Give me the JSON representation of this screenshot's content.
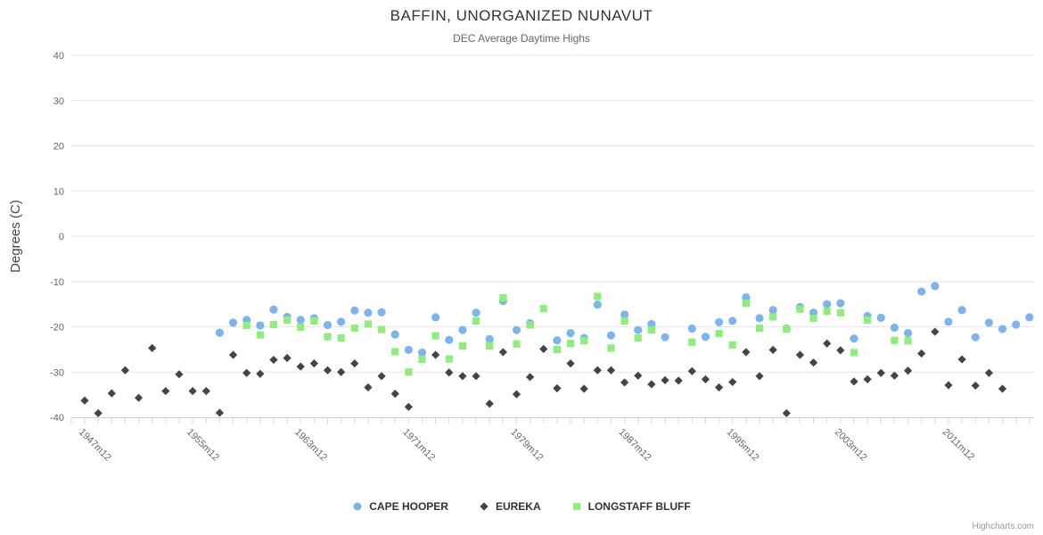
{
  "header": {
    "title": "BAFFIN, UNORGANIZED NUNAVUT",
    "subtitle": "DEC Average Daytime Highs"
  },
  "credits_label": "Highcharts.com",
  "chart_data": {
    "type": "scatter",
    "title": "BAFFIN, UNORGANIZED NUNAVUT",
    "subtitle": "DEC Average Daytime Highs",
    "xlabel": "",
    "ylabel": "Degrees (C)",
    "ylim": [
      -40,
      40
    ],
    "ytick_interval": 10,
    "ytick_labels": [
      "40",
      "30",
      "20",
      "10",
      "0",
      "-10",
      "-20",
      "-30",
      "-40"
    ],
    "x_minor_tick_years": [
      1946,
      2017
    ],
    "x_tick_labels": [
      "1947m12",
      "1955m12",
      "1963m12",
      "1971m12",
      "1979m12",
      "1987m12",
      "1995m12",
      "2003m12",
      "2011m12"
    ],
    "grid": "horizontal-on",
    "legend_position": "bottom-center",
    "colors": {
      "grid_line": "#e6e6e6",
      "axis_line": "#ccd6eb",
      "tick": "#ccd6eb",
      "axis_label": "#666666",
      "axis_title": "#444444",
      "title": "#333333",
      "subtitle": "#666666",
      "legend_text": "#333333",
      "credits_text": "#999999"
    },
    "series": [
      {
        "name": "CAPE HOOPER",
        "marker": "circle",
        "color": "#7cb5ec",
        "points": [
          [
            1957,
            -21.3
          ],
          [
            1958,
            -19.1
          ],
          [
            1959,
            -18.5
          ],
          [
            1960,
            -19.7
          ],
          [
            1961,
            -16.2
          ],
          [
            1962,
            -17.8
          ],
          [
            1963,
            -18.5
          ],
          [
            1964,
            -18.1
          ],
          [
            1965,
            -19.6
          ],
          [
            1966,
            -18.9
          ],
          [
            1967,
            -16.4
          ],
          [
            1968,
            -16.9
          ],
          [
            1969,
            -16.8
          ],
          [
            1970,
            -21.7
          ],
          [
            1971,
            -25.1
          ],
          [
            1972,
            -25.7
          ],
          [
            1973,
            -17.9
          ],
          [
            1974,
            -22.9
          ],
          [
            1975,
            -20.7
          ],
          [
            1976,
            -16.9
          ],
          [
            1977,
            -22.7
          ],
          [
            1978,
            -14.3
          ],
          [
            1979,
            -20.7
          ],
          [
            1980,
            -19.2
          ],
          [
            1982,
            -23.0
          ],
          [
            1983,
            -21.4
          ],
          [
            1984,
            -22.5
          ],
          [
            1985,
            -15.1
          ],
          [
            1986,
            -21.9
          ],
          [
            1987,
            -17.3
          ],
          [
            1988,
            -20.7
          ],
          [
            1989,
            -19.4
          ],
          [
            1990,
            -22.3
          ],
          [
            1992,
            -20.4
          ],
          [
            1993,
            -22.2
          ],
          [
            1994,
            -19.0
          ],
          [
            1995,
            -18.7
          ],
          [
            1996,
            -13.5
          ],
          [
            1997,
            -18.1
          ],
          [
            1998,
            -16.3
          ],
          [
            1999,
            -20.4
          ],
          [
            2000,
            -15.6
          ],
          [
            2001,
            -16.9
          ],
          [
            2002,
            -15.0
          ],
          [
            2003,
            -14.8
          ],
          [
            2004,
            -22.6
          ],
          [
            2005,
            -17.6
          ],
          [
            2006,
            -18.0
          ],
          [
            2007,
            -20.2
          ],
          [
            2008,
            -21.4
          ],
          [
            2009,
            -12.2
          ],
          [
            2010,
            -11.0
          ],
          [
            2011,
            -18.9
          ],
          [
            2012,
            -16.3
          ],
          [
            2013,
            -22.3
          ],
          [
            2014,
            -19.1
          ],
          [
            2015,
            -20.5
          ],
          [
            2016,
            -19.5
          ],
          [
            2017,
            -17.9
          ]
        ]
      },
      {
        "name": "EUREKA",
        "marker": "diamond",
        "color": "#434348",
        "points": [
          [
            1947,
            -36.3
          ],
          [
            1948,
            -39.1
          ],
          [
            1949,
            -34.7
          ],
          [
            1950,
            -29.6
          ],
          [
            1951,
            -35.7
          ],
          [
            1952,
            -24.7
          ],
          [
            1953,
            -34.2
          ],
          [
            1954,
            -30.5
          ],
          [
            1955,
            -34.2
          ],
          [
            1956,
            -34.2
          ],
          [
            1957,
            -39.0
          ],
          [
            1958,
            -26.2
          ],
          [
            1959,
            -30.2
          ],
          [
            1960,
            -30.4
          ],
          [
            1961,
            -27.3
          ],
          [
            1962,
            -26.9
          ],
          [
            1963,
            -28.8
          ],
          [
            1964,
            -28.1
          ],
          [
            1965,
            -29.6
          ],
          [
            1966,
            -30.0
          ],
          [
            1967,
            -28.1
          ],
          [
            1968,
            -33.4
          ],
          [
            1969,
            -30.9
          ],
          [
            1970,
            -34.8
          ],
          [
            1971,
            -37.7
          ],
          [
            1973,
            -26.2
          ],
          [
            1974,
            -30.1
          ],
          [
            1975,
            -30.9
          ],
          [
            1976,
            -30.9
          ],
          [
            1977,
            -37.0
          ],
          [
            1978,
            -25.6
          ],
          [
            1979,
            -34.9
          ],
          [
            1980,
            -31.1
          ],
          [
            1981,
            -24.9
          ],
          [
            1982,
            -33.6
          ],
          [
            1983,
            -28.1
          ],
          [
            1984,
            -33.7
          ],
          [
            1985,
            -29.6
          ],
          [
            1986,
            -29.6
          ],
          [
            1987,
            -32.3
          ],
          [
            1988,
            -30.8
          ],
          [
            1989,
            -32.7
          ],
          [
            1990,
            -31.8
          ],
          [
            1991,
            -31.9
          ],
          [
            1992,
            -29.8
          ],
          [
            1993,
            -31.6
          ],
          [
            1994,
            -33.4
          ],
          [
            1995,
            -32.2
          ],
          [
            1996,
            -25.6
          ],
          [
            1997,
            -30.9
          ],
          [
            1998,
            -25.1
          ],
          [
            1999,
            -39.1
          ],
          [
            2000,
            -26.2
          ],
          [
            2001,
            -27.9
          ],
          [
            2002,
            -23.7
          ],
          [
            2003,
            -25.2
          ],
          [
            2004,
            -32.1
          ],
          [
            2005,
            -31.6
          ],
          [
            2006,
            -30.2
          ],
          [
            2007,
            -30.8
          ],
          [
            2008,
            -29.7
          ],
          [
            2009,
            -25.9
          ],
          [
            2010,
            -21.1
          ],
          [
            2011,
            -32.9
          ],
          [
            2012,
            -27.2
          ],
          [
            2013,
            -33.0
          ],
          [
            2014,
            -30.2
          ],
          [
            2015,
            -33.7
          ]
        ]
      },
      {
        "name": "LONGSTAFF BLUFF",
        "marker": "square",
        "color": "#90ed7d",
        "points": [
          [
            1959,
            -19.7
          ],
          [
            1960,
            -21.8
          ],
          [
            1961,
            -19.5
          ],
          [
            1962,
            -18.5
          ],
          [
            1963,
            -20.1
          ],
          [
            1964,
            -18.7
          ],
          [
            1965,
            -22.2
          ],
          [
            1966,
            -22.5
          ],
          [
            1967,
            -20.3
          ],
          [
            1968,
            -19.4
          ],
          [
            1969,
            -20.6
          ],
          [
            1970,
            -25.5
          ],
          [
            1971,
            -30.0
          ],
          [
            1972,
            -27.2
          ],
          [
            1973,
            -22.0
          ],
          [
            1974,
            -27.1
          ],
          [
            1975,
            -24.2
          ],
          [
            1976,
            -18.7
          ],
          [
            1977,
            -24.2
          ],
          [
            1978,
            -13.6
          ],
          [
            1979,
            -23.8
          ],
          [
            1980,
            -19.6
          ],
          [
            1981,
            -16.0
          ],
          [
            1982,
            -25.0
          ],
          [
            1983,
            -23.7
          ],
          [
            1984,
            -23.1
          ],
          [
            1985,
            -13.3
          ],
          [
            1986,
            -24.7
          ],
          [
            1987,
            -18.7
          ],
          [
            1988,
            -22.5
          ],
          [
            1989,
            -20.7
          ],
          [
            1992,
            -23.4
          ],
          [
            1994,
            -21.5
          ],
          [
            1995,
            -24.0
          ],
          [
            1996,
            -14.8
          ],
          [
            1997,
            -20.3
          ],
          [
            1998,
            -17.8
          ],
          [
            1999,
            -20.5
          ],
          [
            2000,
            -16.1
          ],
          [
            2001,
            -18.1
          ],
          [
            2002,
            -16.6
          ],
          [
            2003,
            -16.9
          ],
          [
            2004,
            -25.7
          ],
          [
            2005,
            -18.5
          ],
          [
            2007,
            -23.0
          ],
          [
            2008,
            -23.1
          ]
        ]
      }
    ]
  }
}
